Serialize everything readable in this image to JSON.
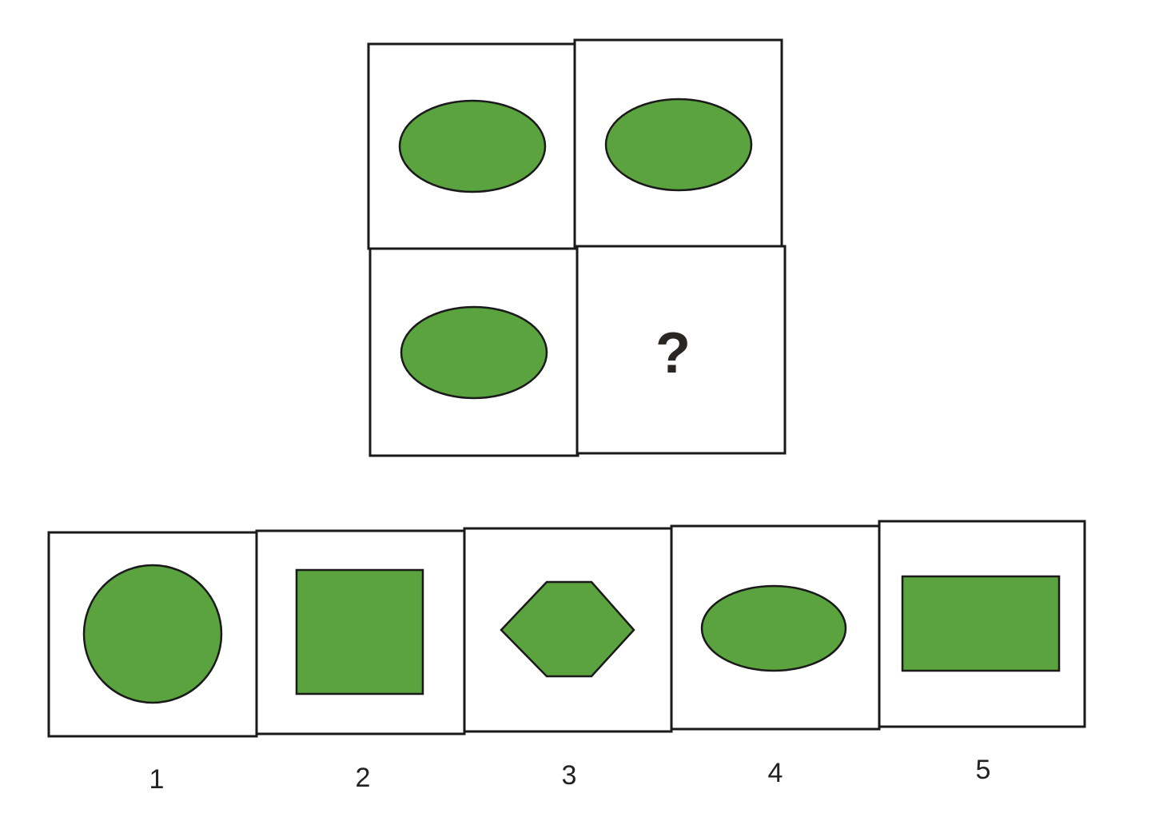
{
  "colors": {
    "shape_fill": "#5aa33e",
    "border": "#1a1a1a",
    "question_mark": "#2a2623"
  },
  "puzzle": {
    "cells": [
      {
        "shape": "ellipse"
      },
      {
        "shape": "ellipse"
      },
      {
        "shape": "ellipse"
      },
      {
        "shape": "missing",
        "text": "?"
      }
    ]
  },
  "options": [
    {
      "label": "1",
      "shape": "circle"
    },
    {
      "label": "2",
      "shape": "square"
    },
    {
      "label": "3",
      "shape": "hexagon"
    },
    {
      "label": "4",
      "shape": "ellipse"
    },
    {
      "label": "5",
      "shape": "rectangle"
    }
  ]
}
